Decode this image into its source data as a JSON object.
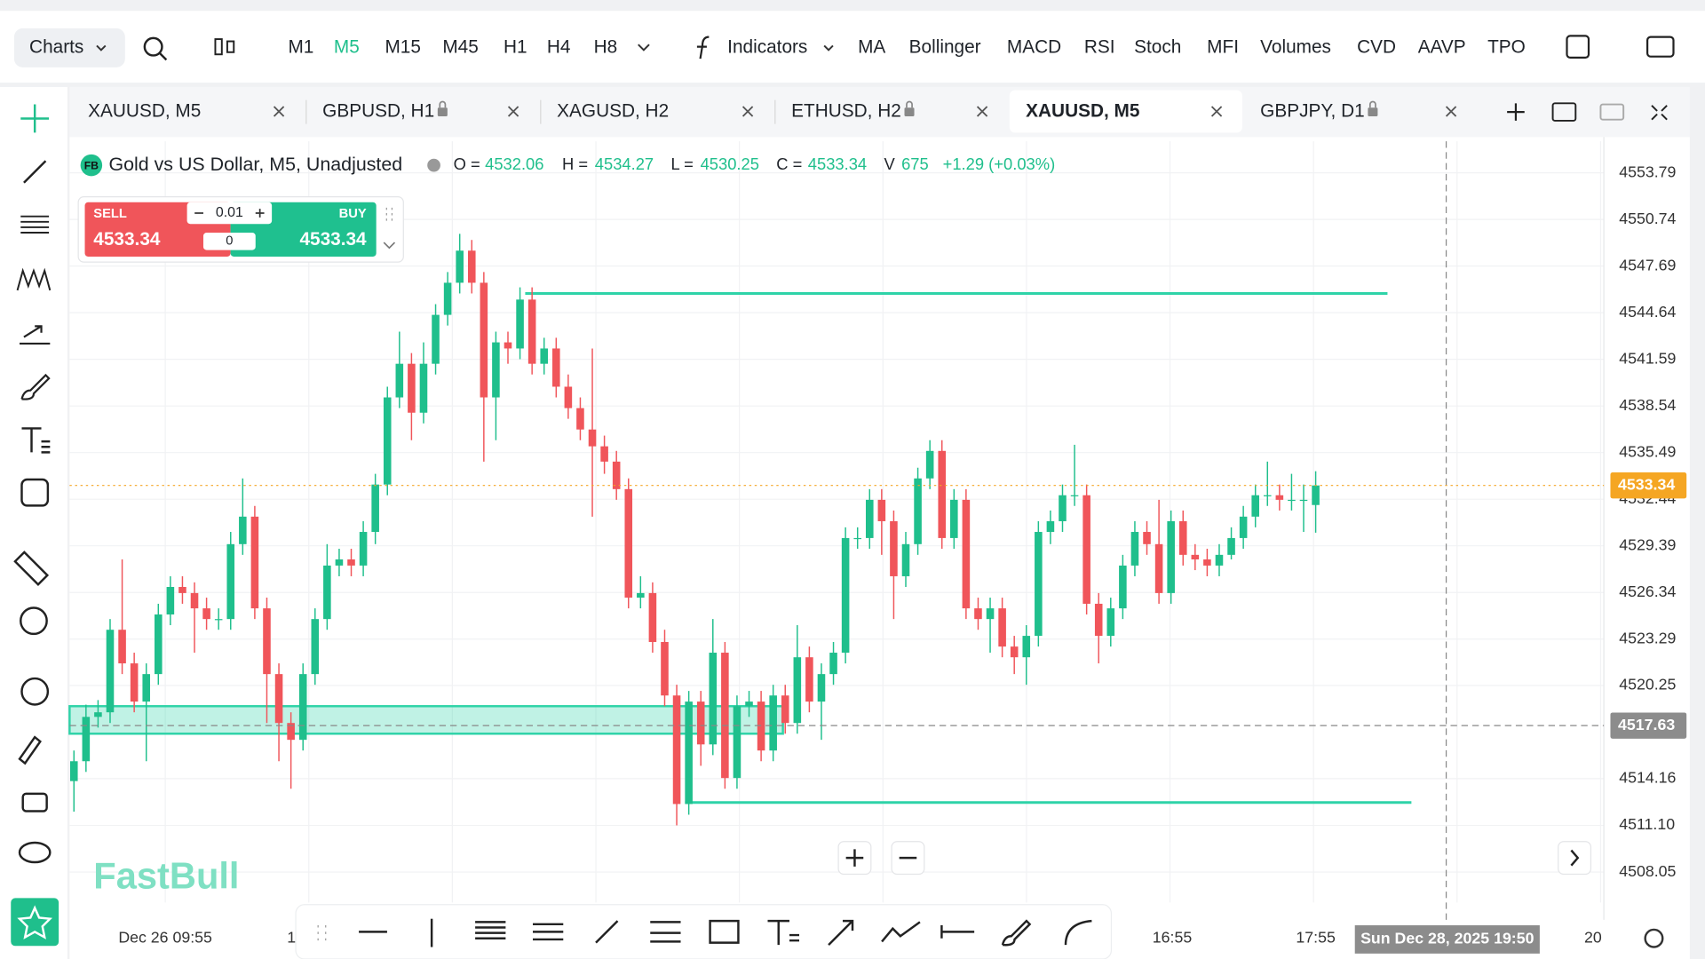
{
  "toolbar": {
    "charts": "Charts",
    "timeframes": [
      {
        "label": "M1",
        "active": false
      },
      {
        "label": "M5",
        "active": true
      },
      {
        "label": "M15",
        "active": false
      },
      {
        "label": "M45",
        "active": false
      },
      {
        "label": "H1",
        "active": false
      },
      {
        "label": "H4",
        "active": false
      },
      {
        "label": "H8",
        "active": false
      }
    ],
    "indicators_label": "Indicators",
    "indicators": [
      "MA",
      "Bollinger",
      "MACD",
      "RSI",
      "Stoch",
      "MFI",
      "Volumes",
      "CVD",
      "AAVP",
      "TPO"
    ]
  },
  "tabs": [
    {
      "label": "XAUUSD, M5",
      "locked": false,
      "active": false
    },
    {
      "label": "GBPUSD, H1",
      "locked": true,
      "active": false
    },
    {
      "label": "XAGUSD, H2",
      "locked": false,
      "active": false
    },
    {
      "label": "ETHUSD, H2",
      "locked": true,
      "active": false
    },
    {
      "label": "XAUUSD, M5",
      "locked": false,
      "active": true
    },
    {
      "label": "GBPJPY, D1",
      "locked": true,
      "active": false
    }
  ],
  "legend": {
    "badge": "FB",
    "name": "Gold vs US Dollar, M5, Unadjusted",
    "labels": [
      "O =",
      "H =",
      "L =",
      "C =",
      "V"
    ],
    "volume": 675,
    "change": "+1.29 (+0.03%)"
  },
  "trade": {
    "sell": "SELL",
    "buy": "BUY",
    "lot": 0.01,
    "count": 0
  },
  "logo": "FastBull",
  "chart_data": {
    "type": "candlestick",
    "up_color": "#1fbf8c",
    "down_color": "#f0555a",
    "open": [
      4514.0,
      4515.3,
      4518.2,
      4518.5,
      4523.9,
      4521.7,
      4519.2,
      4521.0,
      4524.9,
      4526.7,
      4526.3,
      4525.3,
      4524.6,
      4524.6,
      4529.5,
      4531.3,
      4525.3,
      4521.0,
      4517.8,
      4516.7,
      4521.0,
      4524.6,
      4528.1,
      4528.5,
      4528.1,
      4530.3,
      4533.4,
      4539.1,
      4541.3,
      4538.1,
      4541.3,
      4544.5,
      4546.6,
      4548.7,
      4546.6,
      4539.1,
      4542.7,
      4542.3,
      4545.5,
      4541.3,
      4542.3,
      4539.8,
      4538.4,
      4537.0,
      4535.9,
      4534.9,
      4533.1,
      4526.0,
      4526.3,
      4523.1,
      4519.6,
      4512.5,
      4519.2,
      4516.4,
      4522.4,
      4514.2,
      4518.9,
      4519.2,
      4516.0,
      4519.6,
      4517.8,
      4522.1,
      4519.2,
      4521.0,
      4522.4,
      4529.9,
      4529.9,
      4532.4,
      4531.0,
      4527.4,
      4529.5,
      4533.8,
      4535.6,
      4529.9,
      4532.4,
      4525.3,
      4524.6,
      4525.3,
      4522.8,
      4522.1,
      4523.5,
      4530.3,
      4531.0,
      4532.7,
      4532.7,
      4525.6,
      4523.5,
      4525.3,
      4528.1,
      4530.3,
      4529.5,
      4526.3,
      4531.0,
      4528.8,
      4528.5,
      4528.1,
      4528.8,
      4529.9,
      4531.3,
      4532.7,
      4532.7,
      4532.4,
      4532.4,
      4532.06
    ],
    "high": [
      4516.0,
      4519.0,
      4519.3,
      4524.6,
      4528.5,
      4522.4,
      4521.7,
      4525.6,
      4527.4,
      4527.4,
      4527.0,
      4526.0,
      4525.3,
      4530.3,
      4533.8,
      4532.0,
      4526.0,
      4521.7,
      4518.5,
      4521.7,
      4525.3,
      4529.5,
      4529.2,
      4529.2,
      4531.0,
      4534.1,
      4539.8,
      4543.4,
      4542.0,
      4542.7,
      4545.2,
      4547.3,
      4549.8,
      4549.4,
      4547.3,
      4543.4,
      4543.4,
      4546.3,
      4546.3,
      4543.0,
      4543.0,
      4540.6,
      4539.1,
      4542.3,
      4536.6,
      4535.6,
      4533.8,
      4527.4,
      4527.0,
      4523.9,
      4520.3,
      4519.9,
      4519.9,
      4524.6,
      4523.1,
      4519.6,
      4519.9,
      4519.9,
      4520.3,
      4520.3,
      4524.2,
      4522.8,
      4521.7,
      4523.1,
      4530.6,
      4530.6,
      4533.1,
      4533.1,
      4531.7,
      4530.3,
      4534.5,
      4536.3,
      4536.3,
      4533.1,
      4533.1,
      4526.0,
      4526.0,
      4526.0,
      4523.5,
      4524.2,
      4531.0,
      4531.7,
      4533.4,
      4536.0,
      4533.4,
      4526.3,
      4526.0,
      4528.8,
      4531.0,
      4531.0,
      4532.4,
      4531.7,
      4531.7,
      4529.5,
      4529.2,
      4529.5,
      4530.6,
      4532.0,
      4533.4,
      4534.9,
      4533.4,
      4534.1,
      4533.4,
      4534.27
    ],
    "low": [
      4512.0,
      4514.6,
      4517.5,
      4517.8,
      4521.0,
      4518.5,
      4515.3,
      4520.3,
      4524.2,
      4525.6,
      4522.4,
      4523.9,
      4523.9,
      4523.9,
      4528.8,
      4524.6,
      4517.8,
      4515.3,
      4513.5,
      4516.0,
      4520.3,
      4523.9,
      4527.4,
      4527.4,
      4527.4,
      4529.5,
      4532.7,
      4538.4,
      4536.3,
      4537.4,
      4540.6,
      4543.8,
      4545.9,
      4545.9,
      4534.9,
      4536.3,
      4541.3,
      4541.6,
      4540.6,
      4540.6,
      4539.1,
      4537.7,
      4536.3,
      4531.3,
      4534.1,
      4532.4,
      4525.3,
      4525.3,
      4522.4,
      4518.9,
      4511.1,
      4511.8,
      4515.0,
      4515.7,
      4513.5,
      4513.5,
      4518.2,
      4515.3,
      4515.3,
      4517.1,
      4517.1,
      4518.5,
      4516.7,
      4520.3,
      4521.7,
      4529.2,
      4529.2,
      4528.8,
      4524.6,
      4526.7,
      4528.8,
      4533.1,
      4529.2,
      4529.2,
      4524.6,
      4523.9,
      4522.4,
      4522.1,
      4521.0,
      4520.3,
      4522.8,
      4529.5,
      4530.3,
      4532.0,
      4524.9,
      4521.7,
      4522.8,
      4524.6,
      4527.4,
      4528.8,
      4525.6,
      4525.6,
      4528.1,
      4527.8,
      4527.4,
      4527.4,
      4528.5,
      4529.2,
      4530.6,
      4532.0,
      4531.7,
      4531.7,
      4530.3,
      4530.25
    ],
    "close": [
      4515.3,
      4518.2,
      4518.5,
      4523.9,
      4521.7,
      4519.2,
      4521.0,
      4524.9,
      4526.7,
      4526.3,
      4525.3,
      4524.6,
      4524.6,
      4529.5,
      4531.3,
      4525.3,
      4521.0,
      4517.8,
      4516.7,
      4521.0,
      4524.6,
      4528.1,
      4528.5,
      4528.1,
      4530.3,
      4533.4,
      4539.1,
      4541.3,
      4538.1,
      4541.3,
      4544.5,
      4546.6,
      4548.7,
      4546.6,
      4539.1,
      4542.7,
      4542.3,
      4545.5,
      4541.3,
      4542.3,
      4539.8,
      4538.4,
      4537.0,
      4535.9,
      4534.9,
      4533.1,
      4526.0,
      4526.3,
      4523.1,
      4519.6,
      4512.5,
      4519.2,
      4516.4,
      4522.4,
      4514.2,
      4518.9,
      4519.2,
      4516.0,
      4519.6,
      4517.8,
      4522.1,
      4519.2,
      4521.0,
      4522.4,
      4529.9,
      4529.9,
      4532.4,
      4531.0,
      4527.4,
      4529.5,
      4533.8,
      4535.6,
      4529.9,
      4532.4,
      4525.3,
      4524.6,
      4525.3,
      4522.8,
      4522.1,
      4523.5,
      4530.3,
      4531.0,
      4532.7,
      4532.7,
      4525.6,
      4523.5,
      4525.3,
      4528.1,
      4530.3,
      4529.5,
      4526.3,
      4531.0,
      4528.8,
      4528.5,
      4528.1,
      4528.8,
      4529.9,
      4531.3,
      4532.7,
      4532.7,
      4532.4,
      4532.4,
      4532.4,
      4533.34
    ],
    "ylim": [
      4506.06,
      4555.85
    ],
    "yticks": [
      4553.79,
      4550.74,
      4547.69,
      4544.64,
      4541.59,
      4538.54,
      4535.49,
      4532.44,
      4529.39,
      4526.34,
      4523.29,
      4520.25,
      4514.16,
      {
        "value": 4511.1,
        "label": "4511.10"
      },
      4508.05
    ],
    "resistance": 4545.9,
    "support": 4512.6,
    "zone": [
      4517.1,
      4518.9
    ],
    "crosshair_price": 4517.63,
    "crosshair_time": "Sun Dec 28, 2025 19:50",
    "x_labels": [
      "Dec 26 09:55",
      "1",
      "16:55",
      "17:55",
      "20"
    ]
  }
}
